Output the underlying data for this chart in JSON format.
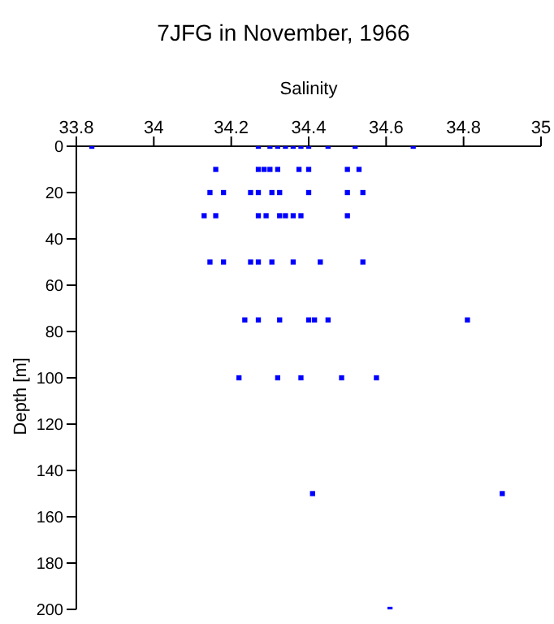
{
  "chart_data": {
    "type": "scatter",
    "title": "7JFG in November, 1966",
    "xlabel": "Salinity",
    "ylabel": "Depth [m]",
    "x": [
      33.84,
      34.27,
      34.3,
      34.32,
      34.34,
      34.36,
      34.38,
      34.4,
      34.45,
      34.52,
      34.67,
      34.16,
      34.27,
      34.285,
      34.3,
      34.32,
      34.375,
      34.4,
      34.5,
      34.53,
      34.145,
      34.18,
      34.25,
      34.27,
      34.305,
      34.325,
      34.4,
      34.5,
      34.54,
      34.13,
      34.16,
      34.27,
      34.29,
      34.325,
      34.34,
      34.36,
      34.38,
      34.5,
      34.145,
      34.18,
      34.25,
      34.27,
      34.305,
      34.36,
      34.43,
      34.54,
      34.235,
      34.27,
      34.325,
      34.4,
      34.415,
      34.45,
      34.81,
      34.22,
      34.32,
      34.38,
      34.485,
      34.575,
      34.41,
      34.9,
      34.61
    ],
    "series": [
      {
        "color": "#0000ff",
        "values": [
          0,
          0,
          0,
          0,
          0,
          0,
          0,
          0,
          0,
          0,
          0,
          10,
          10,
          10,
          10,
          10,
          10,
          10,
          10,
          10,
          20,
          20,
          20,
          20,
          20,
          20,
          20,
          20,
          20,
          30,
          30,
          30,
          30,
          30,
          30,
          30,
          30,
          30,
          50,
          50,
          50,
          50,
          50,
          50,
          50,
          50,
          75,
          75,
          75,
          75,
          75,
          75,
          75,
          100,
          100,
          100,
          100,
          100,
          150,
          150,
          200
        ]
      }
    ],
    "xlim": [
      33.8,
      35
    ],
    "xticks": [
      33.8,
      34,
      34.2,
      34.4,
      34.6,
      34.8,
      35
    ],
    "ylim": [
      200,
      0
    ],
    "yticks": [
      0,
      20,
      40,
      60,
      80,
      100,
      120,
      140,
      160,
      180,
      200
    ],
    "grid": false,
    "marker": "square"
  }
}
